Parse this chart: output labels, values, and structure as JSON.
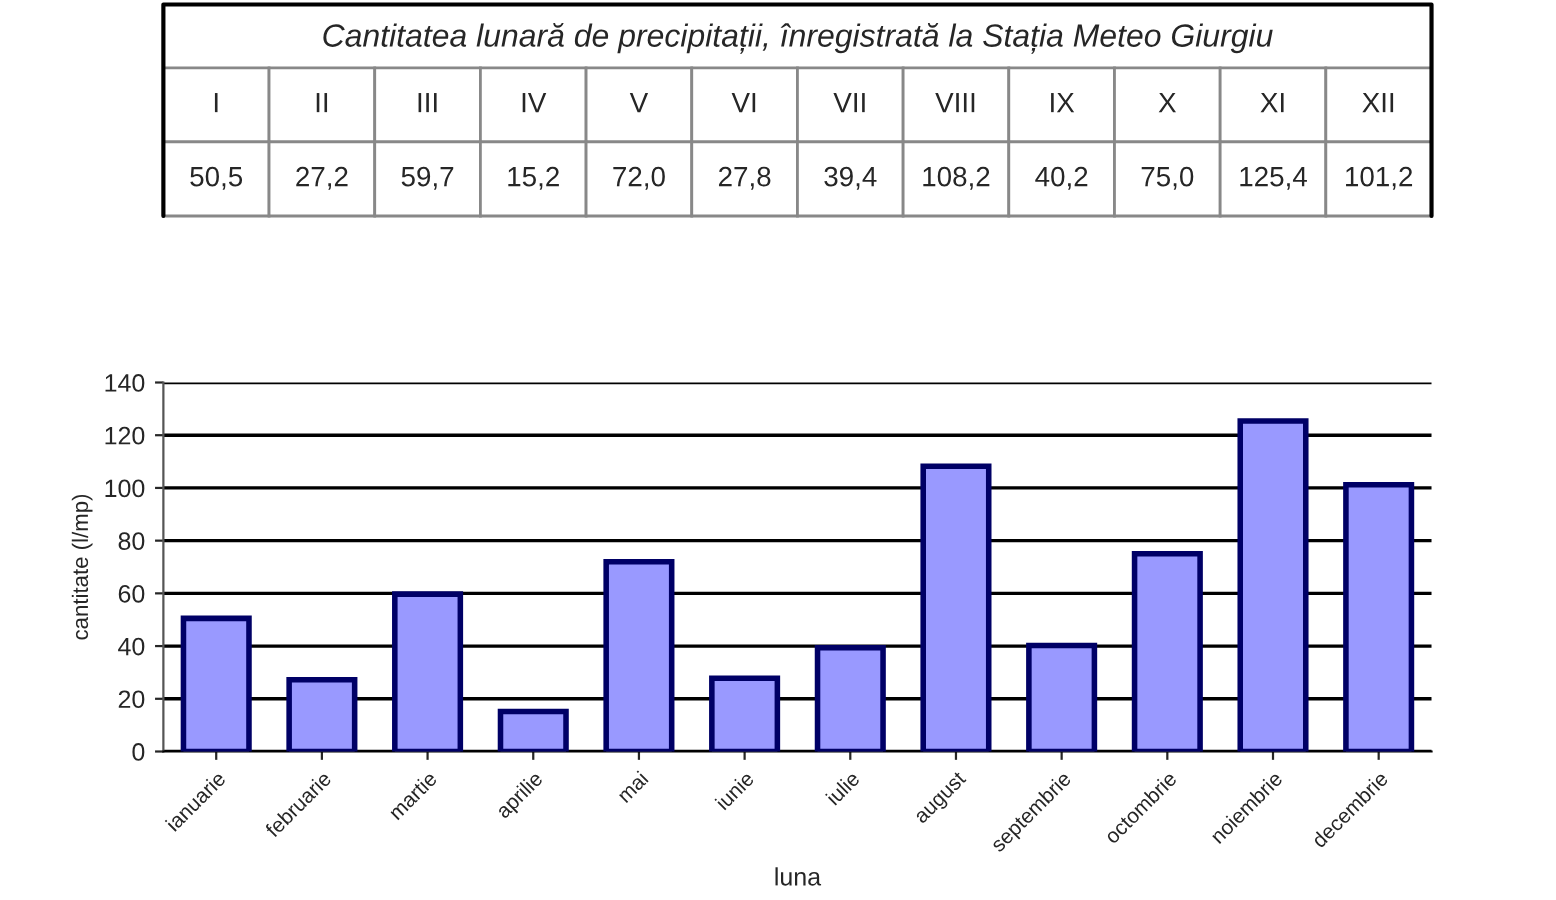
{
  "chart_data": {
    "type": "bar",
    "title": "Cantitatea lunară de precipitații, înregistrată la Stația Meteo Giurgiu",
    "xlabel": "luna",
    "ylabel": "cantitate (l/mp)",
    "categories": [
      "ianuarie",
      "februarie",
      "martie",
      "aprilie",
      "mai",
      "iunie",
      "iulie",
      "august",
      "septembrie",
      "octombrie",
      "noiembrie",
      "decembrie"
    ],
    "values": [
      50.5,
      27.2,
      59.7,
      15.2,
      72.0,
      27.8,
      39.4,
      108.2,
      40.2,
      75.0,
      125.4,
      101.2
    ],
    "value_labels": [
      "50,5",
      "27,2",
      "59,7",
      "15,2",
      "72,0",
      "27,8",
      "39,4",
      "108,2",
      "40,2",
      "75,0",
      "125,4",
      "101,2"
    ],
    "annotations": [
      "I",
      "II",
      "III",
      "IV",
      "V",
      "VI",
      "VII",
      "VIII",
      "IX",
      "X",
      "XI",
      "XII"
    ],
    "color": "#9999ff",
    "ylim": [
      0,
      140
    ],
    "yticks": [
      0,
      20,
      40,
      60,
      80,
      100,
      120,
      140
    ],
    "grid": "y",
    "legend": false
  }
}
